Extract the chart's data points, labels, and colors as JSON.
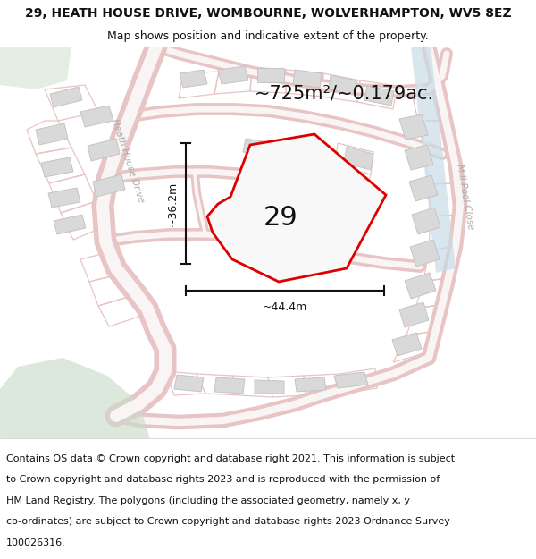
{
  "title_line1": "29, HEATH HOUSE DRIVE, WOMBOURNE, WOLVERHAMPTON, WV5 8EZ",
  "title_line2": "Map shows position and indicative extent of the property.",
  "area_text": "~725m²/~0.179ac.",
  "label_29": "29",
  "dim_vertical": "~36.2m",
  "dim_horizontal": "~44.4m",
  "road_label": "Heath House Drive",
  "road_label2": "Mill Pool Close",
  "footer_lines": [
    "Contains OS data © Crown copyright and database right 2021. This information is subject",
    "to Crown copyright and database rights 2023 and is reproduced with the permission of",
    "HM Land Registry. The polygons (including the associated geometry, namely x, y",
    "co-ordinates) are subject to Crown copyright and database rights 2023 Ordnance Survey",
    "100026316."
  ],
  "bg_color": "#ffffff",
  "map_bg": "#f2f0ef",
  "plot_fill": "#f8f8f8",
  "plot_edge": "#dd0000",
  "road_fill": "#f5e8e8",
  "road_stroke": "#e8c4c4",
  "building_fill": "#d9d9d9",
  "building_edge": "#c0c0c0",
  "water_color": "#c9dce8",
  "green_color": "#ccdccc",
  "dim_color": "#111111",
  "text_color": "#111111",
  "road_text_color": "#aaaaaa",
  "title_fontsize": 10,
  "subtitle_fontsize": 9,
  "area_fontsize": 15,
  "label_fontsize": 22,
  "dim_fontsize": 9,
  "footer_fontsize": 8,
  "road_fontsize": 7.5
}
